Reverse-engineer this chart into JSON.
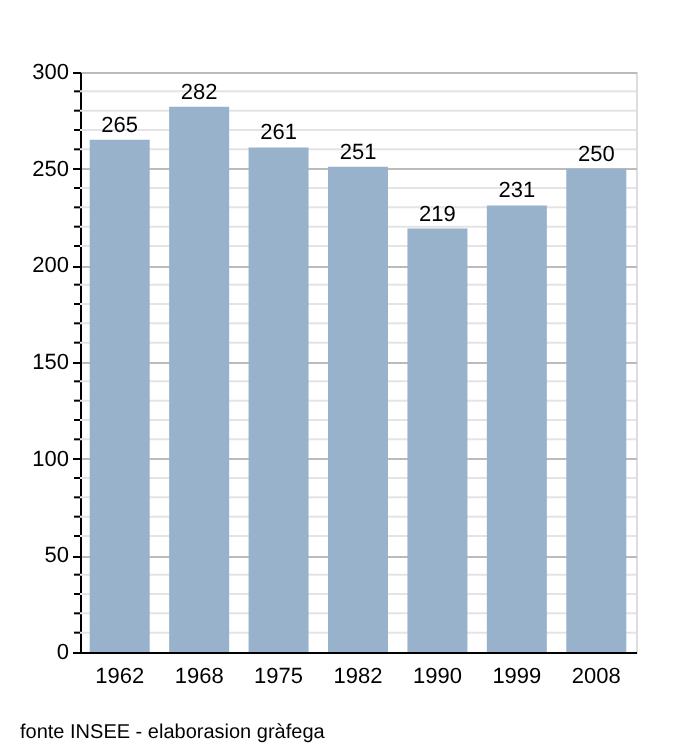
{
  "chart_data": {
    "type": "bar",
    "categories": [
      "1962",
      "1968",
      "1975",
      "1982",
      "1990",
      "1999",
      "2008"
    ],
    "values": [
      265,
      282,
      261,
      251,
      219,
      231,
      250
    ],
    "color": "#98b2cb",
    "data_labels": true,
    "ylim": [
      0,
      300
    ],
    "yticks": [
      0,
      {
        "value": 10,
        "label": null
      },
      {
        "value": 20,
        "label": null
      },
      {
        "value": 30,
        "label": null
      },
      {
        "value": 40,
        "label": null
      },
      50,
      {
        "value": 60,
        "label": null
      },
      {
        "value": 70,
        "label": null
      },
      {
        "value": 80,
        "label": null
      },
      {
        "value": 90,
        "label": null
      },
      100,
      {
        "value": 110,
        "label": null
      },
      {
        "value": 120,
        "label": null
      },
      {
        "value": 130,
        "label": null
      },
      {
        "value": 140,
        "label": null
      },
      150,
      {
        "value": 160,
        "label": null
      },
      {
        "value": 170,
        "label": null
      },
      {
        "value": 180,
        "label": null
      },
      {
        "value": 190,
        "label": null
      },
      200,
      {
        "value": 210,
        "label": null
      },
      {
        "value": 220,
        "label": null
      },
      {
        "value": 230,
        "label": null
      },
      {
        "value": 240,
        "label": null
      },
      250,
      {
        "value": 260,
        "label": null
      },
      {
        "value": 270,
        "label": null
      },
      {
        "value": 280,
        "label": null
      },
      {
        "value": 290,
        "label": null
      },
      300
    ],
    "grid": "y",
    "annotations": [
      "fonte INSEE - elaborasion gràfega"
    ]
  }
}
